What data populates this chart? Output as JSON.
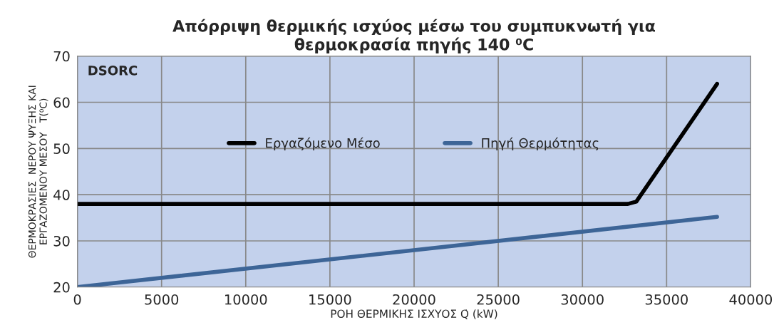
{
  "chart_data": {
    "type": "line",
    "title": "Απόρριψη θερμικής ισχύος μέσω του συμπυκνωτή για\nθερμοκρασία πηγής 140 ⁰C",
    "xlabel": "ΡΟΗ ΘΕΡΜΙΚΗΣ ΙΣΧΥΟΣ Q̇ (kW)",
    "ylabel": "ΘΕΡΜΟΚΡΑΣΙΕΣ  ΝΕΡΟΥ ΨΥΞΗΣ ΚΑΙ\nΕΡΓΑΖΟΜΕΝΟΥ ΜΕΣΟΥ   T(⁰C)",
    "annotations": [
      "DSORC"
    ],
    "series": [
      {
        "name": "Εργαζόμενο Μέσο",
        "color": "#000000",
        "x": [
          0,
          32700,
          33200,
          38000
        ],
        "values": [
          38,
          38,
          38.5,
          64
        ]
      },
      {
        "name": "Πηγή Θερμότητας",
        "color": "#3d6597",
        "x": [
          0,
          38000
        ],
        "values": [
          20,
          35.2
        ]
      }
    ],
    "xlim": [
      0,
      40000
    ],
    "xticks": [
      0,
      5000,
      10000,
      15000,
      20000,
      25000,
      30000,
      35000,
      40000
    ],
    "ylim": [
      20,
      70
    ],
    "yticks": [
      20,
      30,
      40,
      50,
      60,
      70
    ],
    "grid": true,
    "legend": "center",
    "line_style": "solid",
    "marker": "none"
  }
}
